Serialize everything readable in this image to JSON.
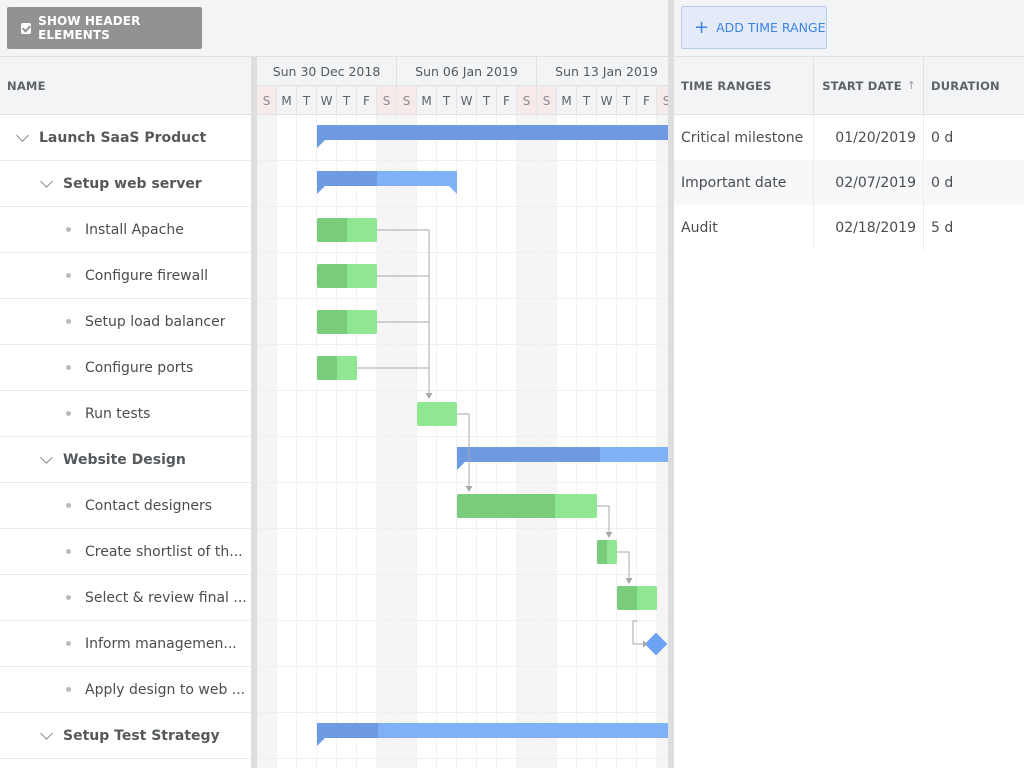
{
  "toolbar": {
    "show_header_label": "SHOW HEADER ELEMENTS",
    "add_time_range_label": "ADD TIME RANGE"
  },
  "grid": {
    "name_header": "NAME"
  },
  "timeline": {
    "weeks": [
      "Sun 30 Dec 2018",
      "Sun 06 Jan 2019",
      "Sun 13 Jan 2019"
    ],
    "day_letters": [
      "S",
      "M",
      "T",
      "W",
      "T",
      "F",
      "S",
      "S",
      "M",
      "T",
      "W",
      "T",
      "F",
      "S",
      "S",
      "M",
      "T",
      "W",
      "T",
      "F",
      "S",
      "S"
    ]
  },
  "tasks": [
    {
      "name": "Launch SaaS Product",
      "type": "parent",
      "level": 0
    },
    {
      "name": "Setup web server",
      "type": "parent",
      "level": 1
    },
    {
      "name": "Install Apache",
      "type": "leaf",
      "level": 2
    },
    {
      "name": "Configure firewall",
      "type": "leaf",
      "level": 2
    },
    {
      "name": "Setup load balancer",
      "type": "leaf",
      "level": 2
    },
    {
      "name": "Configure ports",
      "type": "leaf",
      "level": 2
    },
    {
      "name": "Run tests",
      "type": "leaf",
      "level": 2
    },
    {
      "name": "Website Design",
      "type": "parent",
      "level": 1
    },
    {
      "name": "Contact designers",
      "type": "leaf",
      "level": 2
    },
    {
      "name": "Create shortlist of th...",
      "type": "leaf",
      "level": 2
    },
    {
      "name": "Select & review final ...",
      "type": "leaf",
      "level": 2
    },
    {
      "name": "Inform managemen...",
      "type": "leaf",
      "level": 2
    },
    {
      "name": "Apply design to web ...",
      "type": "leaf",
      "level": 2
    },
    {
      "name": "Setup Test Strategy",
      "type": "parent",
      "level": 1
    }
  ],
  "ranges_panel": {
    "headers": {
      "name": "TIME RANGES",
      "start": "START DATE",
      "duration": "DURATION",
      "sort_icon": "arrow-up-icon"
    },
    "rows": [
      {
        "name": "Critical milestone",
        "start": "01/20/2019",
        "duration": "0 d"
      },
      {
        "name": "Important date",
        "start": "02/07/2019",
        "duration": "0 d"
      },
      {
        "name": "Audit",
        "start": "02/18/2019",
        "duration": "5 d"
      }
    ]
  },
  "colors": {
    "task": "#90e792",
    "task_progress": "#7bcb7d",
    "summary": "#7fb1f7",
    "summary_progress": "#6d9ae0",
    "milestone": "#6ca3f2",
    "accent": "#3e83e2"
  }
}
